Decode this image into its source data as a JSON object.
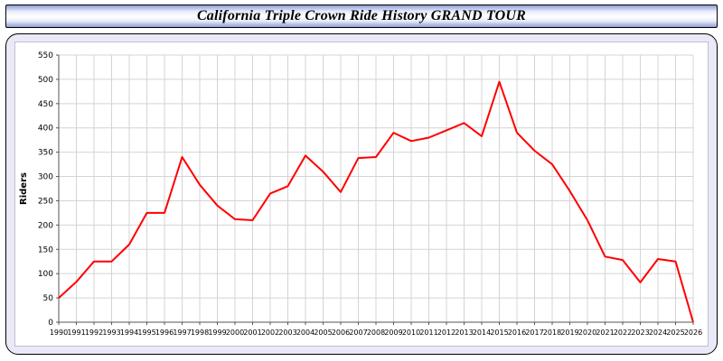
{
  "header": {
    "title": "California Triple Crown Ride History GRAND TOUR"
  },
  "colors": {
    "line": "#ff0000",
    "grid": "#d4d4d4",
    "axis": "#555555",
    "panel_bg": "#e9e9f8",
    "plot_bg": "#ffffff",
    "titlebar_edge": "#8f9dd6"
  },
  "chart_data": {
    "type": "line",
    "title": "California Triple Crown Ride History GRAND TOUR",
    "xlabel": "",
    "ylabel": "Riders",
    "ylim": [
      0,
      550
    ],
    "ytick_step": 50,
    "grid": true,
    "legend": "none",
    "categories": [
      1990,
      1991,
      1992,
      1993,
      1994,
      1995,
      1996,
      1997,
      1998,
      1999,
      2000,
      2001,
      2002,
      2003,
      2004,
      2005,
      2006,
      2007,
      2008,
      2009,
      2010,
      2011,
      2012,
      2013,
      2014,
      2015,
      2016,
      2017,
      2018,
      2019,
      2020,
      2021,
      2022,
      2023,
      2024,
      2025,
      2026
    ],
    "series": [
      {
        "name": "Riders",
        "values": [
          50,
          83,
          125,
          125,
          160,
          225,
          225,
          340,
          283,
          240,
          212,
          210,
          265,
          280,
          343,
          310,
          268,
          338,
          340,
          390,
          373,
          380,
          395,
          410,
          383,
          495,
          390,
          353,
          325,
          270,
          210,
          135,
          128,
          82,
          130,
          125,
          0
        ]
      }
    ]
  }
}
